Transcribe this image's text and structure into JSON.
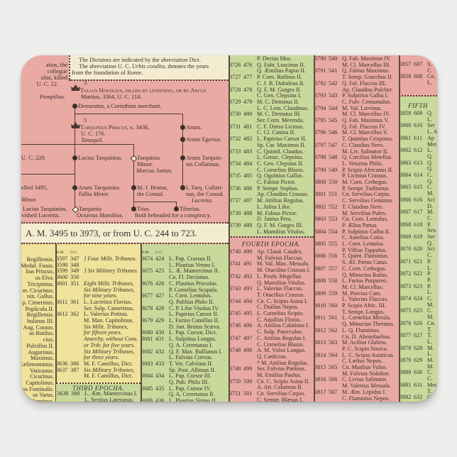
{
  "colors": {
    "pink": "#e9aaa3",
    "yellow": "#efe29a",
    "green": "#c9d99b",
    "cream": "#f3ecd1",
    "ink": "#3b2f2b"
  },
  "note": {
    "line1": "The Dictators are indicated by the abreviation Dict.",
    "line2a": "The abreviation U. C. ",
    "line2b": "Urbis condita",
    "line2c": ", denotes the years",
    "line3": "from the foundation of Rome."
  },
  "left_fragment": {
    "l1": "atius, the",
    "l2": "collegue",
    "l3": "ulus, killed",
    "l4": "U. C. 12.",
    "l5": "Pompilius."
  },
  "tree": {
    "tullus_num": "3",
    "tullus": "Tullus Hostilius, killed by lightning, or by Ancus",
    "tullus2": "Martius, 3364, U. C. 114.",
    "demaratus": "Demaratus, a Corinthian merchant.",
    "tarq_num": "5",
    "tarq": "Tarquinius Priscus, k. 3436,",
    "tarq2": "U. C. 176.",
    "tarq3": "Tanaquil.",
    "aruns": "Aruns.",
    "aruns_egerius": "Aruns Egerius.",
    "aruns_tarq_coll": "Aruns Tarquin-",
    "aruns_tarq_coll2": "ius Collatinus.",
    "uc220": "U. C. 220.",
    "lucius": "Lucius Tarquinius.",
    "tarquinia_minor": "Tarquinia",
    "tarquinia_minor2": "Minor.",
    "marcus_junius": "Marcus Junius.",
    "expelled": "elled 3495,",
    "minor": "Minor.",
    "aruns_tarq": "Aruns Tarquinius.",
    "tullia": "Tullia Minor.",
    "brutus": "M. J. Brutus,",
    "brutus2": "the Consul.",
    "collatinus": "L.Tarq. Collati-",
    "collatinus2": "nus, the Consul.",
    "lucretia": "Lucretia.",
    "lucius2": "Lucius Tarquinius,",
    "ravished": "vished Lucretia.",
    "tarquinia": "Tarquinia",
    "octavius": "Octavius Mamilius.",
    "titus": "Titus.",
    "tiberius": "Tiberius.",
    "beheaded": "Both beheaded for a conspiracy."
  },
  "band": "A. M. 3495 to 3973, or from U. C. 244 to 723.",
  "headers": {
    "am": "A.M.",
    "uc": "U.C."
  },
  "epochs": {
    "third": "THIRD EPOCHA.",
    "fourth": "FOURTH EPOCHA.",
    "fifth": "FIFTH"
  },
  "left_names": [
    "Regillensis.",
    "Medul. Fusus.",
    "lius Priscus.",
    "us Elva.",
    "Triciptinus.",
    "m. Cicurinus.",
    "nin. Gallus.",
    "p. Cimerinus.",
    "Poplicola II.",
    "Regillensis.",
    "bulanus III.",
    "Aug. Cossus.",
    "us Rutilus.",
    "cius.",
    "Pulvillus II.",
    "Augurinus.",
    "Maximus.",
    "Cælimontanus.",
    "Vaticanus.",
    "Cicurinus.",
    "Capitolinus.",
    "us Fontinalis.",
    "us Varus.",
    "Geminus."
  ],
  "tribunes_col": [
    [
      "3597",
      "347",
      "} Four Milit. Tribunes.",
      "i"
    ],
    [
      "3598",
      "348",
      ""
    ],
    [
      "3599",
      "349",
      "} Six Military Tribunes",
      "i"
    ],
    [
      "3600",
      "350",
      ""
    ],
    [
      "3601",
      "351",
      "Eight Milit. Tribunes,",
      "i"
    ],
    [
      "",
      "",
      "Six Military Tribunes,",
      "i"
    ],
    [
      "",
      "",
      "for nine years.",
      "i"
    ],
    [
      "3611",
      "361",
      "L. Lucretius Flavius."
    ],
    [
      "",
      "",
      "Ser. Sulp. Camerinus."
    ],
    [
      "3612",
      "362",
      "L. Valerius Potitus."
    ],
    [
      "",
      "",
      "M. Man. Capitolinus."
    ],
    [
      "",
      "",
      "Six Milit. Tribunes,",
      "i"
    ],
    [
      "",
      "",
      "for fifteen years.",
      "i"
    ],
    [
      "",
      "",
      "Anarchy, without Cons.",
      "i"
    ],
    [
      "",
      "",
      "or Trib. for five years.",
      "i"
    ],
    [
      "",
      "",
      "Six Military Tribunes,",
      "i"
    ],
    [
      "",
      "",
      "for three years.",
      "i"
    ],
    [
      "3636",
      "386",
      "M. F. Camillus, Dict."
    ],
    [
      "3637",
      "387",
      "Six Military Tribunes,",
      "i"
    ],
    [
      "",
      "",
      "M. F. Camillus, Dict."
    ]
  ],
  "third_epoch_col": [
    [
      "3638",
      "388",
      "L. Æm. Mamercinus I."
    ],
    [
      "",
      "",
      "L. Sextius Lateranus."
    ]
  ],
  "green_col": [
    [
      "3674",
      "424",
      "L. Pap. Crassus II."
    ],
    [
      "",
      "",
      "L. Plautius Venno I."
    ],
    [
      "3675",
      "425",
      "L. Æ. Mamercinus II."
    ],
    [
      "",
      "",
      "Cn. Fl. Decianus."
    ],
    [
      "3676",
      "426",
      "C. Plautius Proculus."
    ],
    [
      "",
      "",
      "P. Cornelius Scapula."
    ],
    [
      "3677",
      "427",
      "L. Corn. Lentulus."
    ],
    [
      "",
      "",
      "Q. Publius Philo II."
    ],
    [
      "3678",
      "428",
      "C. P. Libo Visolus IV."
    ],
    [
      "",
      "",
      "L. Papirius Cursor II."
    ],
    [
      "3679",
      "429",
      "L. Furius Camillus II."
    ],
    [
      "",
      "",
      "D. Jun. Brutus Scæva."
    ],
    [
      "3680",
      "430",
      "L. Pap. Cursor, Dict."
    ],
    [
      "3681",
      "431",
      "L. Sulpitius Longus."
    ],
    [
      "",
      "",
      "Q. A. Cerretanus I."
    ],
    [
      "3682",
      "432",
      "Q. F. Max. Rullianus I."
    ],
    [
      "",
      "",
      "L. Fulvius Corvus."
    ],
    [
      "3683",
      "433",
      "T. Vet. Calvinus II."
    ],
    [
      "",
      "",
      "Sp. Post. Albinus II."
    ],
    [
      "3684",
      "434",
      "L. Pap. Cursor III."
    ],
    [
      "",
      "",
      "Q. Pub. Philo III."
    ],
    [
      "3685",
      "435",
      "L. Pap. Cursor IV."
    ],
    [
      "",
      "",
      "Q. A. Cerretanus II."
    ],
    [
      "3686",
      "436",
      "L. Plautius Venno II."
    ]
  ],
  "mid_green_col": [
    [
      "",
      "",
      "P. Decius Mus."
    ],
    [
      "3726",
      "476",
      "Q. Fabr. Luscinus II."
    ],
    [
      "",
      "",
      "Q. Æmilius Papus II."
    ],
    [
      "3727",
      "477",
      "P. Corn. Rufinus II."
    ],
    [
      "",
      "",
      "C. J. B. Dubuleus II."
    ],
    [
      "3728",
      "478",
      "Q. F. M. Gurges II."
    ],
    [
      "",
      "",
      "C. Gen. Clepsina I."
    ],
    [
      "3729",
      "479",
      "M. C. Dentatus II."
    ],
    [
      "",
      "",
      "L. C. Lent. Claudinus."
    ],
    [
      "3730",
      "480",
      "M. C. Dentatus III."
    ],
    [
      "",
      "",
      "Ser. Corn. Merenda."
    ],
    [
      "3731",
      "481",
      "C. F. Dorso Licinus."
    ],
    [
      "",
      "",
      "C. Cl. Canina II."
    ],
    [
      "3732",
      "482",
      "L. Papirius Cursor II."
    ],
    [
      "",
      "",
      "Sp. Car. Maximus II."
    ],
    [
      "3733",
      "483",
      "C. Quintil. Claudus."
    ],
    [
      "",
      "",
      "L. Genuc. Clepsina."
    ],
    [
      "3734",
      "484",
      "C. Gen. Clepsina II."
    ],
    [
      "",
      "",
      "C. Cornelius Blasio."
    ],
    [
      "3735",
      "485",
      "Q. Ogulnius Gallus."
    ],
    [
      "",
      "",
      "C. Fabius Pictor."
    ],
    [
      "3736",
      "486",
      "P. Sempr. Sophus."
    ],
    [
      "",
      "",
      "Ap. Claudius Crassus."
    ],
    [
      "3737",
      "487",
      "M. Attilius Regulus."
    ],
    [
      "",
      "",
      "L. Julius Libo."
    ],
    [
      "3738",
      "488",
      "M. Fabius Pictor."
    ],
    [
      "",
      "",
      "D. Junius Pera."
    ],
    [
      "3739",
      "489",
      "Q. F. M. Gurges III."
    ],
    [
      "",
      "",
      "L. Mamilius Vitulus."
    ]
  ],
  "fourth_epoch_col": [
    [
      "3740",
      "490",
      "Ap. Claud. Caudex."
    ],
    [
      "",
      "",
      "M. Fulvius Flaccus."
    ],
    [
      "3741",
      "491",
      "M. Val. Max. Messala."
    ],
    [
      "",
      "",
      "M. Otacilius Crassus I."
    ],
    [
      "3742",
      "492",
      "L. Posth. Megellus."
    ],
    [
      "",
      "",
      "Q. Mamilius Vitulus."
    ],
    [
      "3743",
      "493",
      "L. Valerius Flaccus."
    ],
    [
      "",
      "",
      "T. Otacilius Crassus."
    ],
    [
      "3744",
      "494",
      "Cn. C. Scipio Asina I."
    ],
    [
      "",
      "",
      "C. Duilius Nepos."
    ],
    [
      "3745",
      "495",
      "L. Cornelius Scipio."
    ],
    [
      "",
      "",
      "C. Aquilius Florus."
    ],
    [
      "3746",
      "496",
      "A. Attilius Calatinus I."
    ],
    [
      "",
      "",
      "C. Sulp. Paterculus."
    ],
    [
      "3747",
      "497",
      "C. Attilius Regulus I."
    ],
    [
      "",
      "",
      "C. Cornelius Blasio."
    ],
    [
      "3748",
      "498",
      "A. M. Vulso Longus."
    ],
    [
      "",
      "",
      "Q. Cædicius."
    ],
    [
      "",
      "",
      "* M. Attilius Regulus."
    ],
    [
      "3749",
      "499",
      "Ser. Fulvius Pætinus."
    ],
    [
      "",
      "",
      "M. Emilius Paulus."
    ],
    [
      "3750",
      "500",
      "Cn. C. Scipio Asina II."
    ],
    [
      "",
      "",
      "A. Att. Calatinus II."
    ],
    [
      "3751",
      "501",
      "Cn. Servilius Cæpio."
    ],
    [
      "",
      "",
      "C. Sempr. Blæsus I."
    ]
  ],
  "pink_col": [
    [
      "3790",
      "540",
      "Q. Fab. Maximus IV."
    ],
    [
      "",
      "",
      "M. Cl. Marcellus III."
    ],
    [
      "3791",
      "541",
      "Q. Fabius Maximus."
    ],
    [
      "",
      "",
      "T. Semp. Gracchus II."
    ],
    [
      "3792",
      "542",
      "Q. Ful. Flaccus III."
    ],
    [
      "",
      "",
      "Ap. Claudius Pulcher."
    ],
    [
      "3793",
      "543",
      "P. Sulpitius Galba I."
    ],
    [
      "",
      "",
      "C. Fulv. Centumalus."
    ],
    [
      "3794",
      "544",
      "M. Val. Lævinus."
    ],
    [
      "",
      "",
      "M. Cl. Marcellus IV."
    ],
    [
      "3795",
      "545",
      "Q. Fab. Maximus V."
    ],
    [
      "",
      "",
      "Q. Ful. Flaccus IV."
    ],
    [
      "3796",
      "546",
      "M. Cl. Marcellus V."
    ],
    [
      "",
      "",
      "T. Quintius Crispinus."
    ],
    [
      "3797",
      "547",
      "C. Claudius Nero."
    ],
    [
      "",
      "",
      "M. Liv. Salinator II."
    ],
    [
      "3798",
      "548",
      "Q. Cæcilius Metellus."
    ],
    [
      "",
      "",
      "L. Veturius Philo."
    ],
    [
      "3799",
      "549",
      "P. Scipio Africanus II."
    ],
    [
      "",
      "",
      "P. Licinius Crassus."
    ],
    [
      "3800",
      "550",
      "M. Corn. Cethegus."
    ],
    [
      "",
      "",
      "P. Sempr. Tuditanus."
    ],
    [
      "3801",
      "551",
      "Cn. Servilius Cæpio."
    ],
    [
      "",
      "",
      "C. Servilius Geminus."
    ],
    [
      "3802",
      "552",
      "T. Claudius Nero."
    ],
    [
      "",
      "",
      "M. Servilius Pulex."
    ],
    [
      "3803",
      "553",
      "Cn. Corn. Lentulus."
    ],
    [
      "",
      "",
      "P. Ælius Pætus."
    ],
    [
      "3804",
      "554",
      "P. Sulpitius Galba II."
    ],
    [
      "",
      "",
      "C. Aurelius Cotta."
    ],
    [
      "3805",
      "555",
      "L. Corn. Lentulus."
    ],
    [
      "",
      "",
      "P. Villius Tappulus."
    ],
    [
      "3806",
      "556",
      "T. Quint. Flaminius."
    ],
    [
      "",
      "",
      "S. Æl. Pætus Catus."
    ],
    [
      "3807",
      "557",
      "C. Corn. Cethegus."
    ],
    [
      "",
      "",
      "Q. Minucius Rufus."
    ],
    [
      "3808",
      "558",
      "L. Furius Purpureo."
    ],
    [
      "",
      "",
      "M. Cl. Marcellus."
    ],
    [
      "3809",
      "559",
      "M. Porcius Cato."
    ],
    [
      "",
      "",
      "L. Valerius Flaccus."
    ],
    [
      "3810",
      "560",
      "P. Scipio Afric. III."
    ],
    [
      "",
      "",
      "T. Sempr. Longus."
    ],
    [
      "3811",
      "561",
      "L. Cornelius Merula."
    ],
    [
      "",
      "",
      "Q. Minucius Thermus."
    ],
    [
      "3812",
      "562",
      "L. Q. Flaminius."
    ],
    [
      "",
      "",
      "Cn. D. Ahenobarbus."
    ],
    [
      "3813",
      "563",
      "M. Acilius Glabrio."
    ],
    [
      "",
      "",
      "P. C. Scipio Nasica."
    ],
    [
      "3814",
      "564",
      "L. C. Scipio Asiaticus."
    ],
    [
      "",
      "",
      "C. Lælius Nepos."
    ],
    [
      "3815",
      "565",
      "Cn. Manlius Vulso."
    ],
    [
      "",
      "",
      "M. Fulvius Nobilior."
    ],
    [
      "3816",
      "566",
      "C. Livius Salinator."
    ],
    [
      "",
      "",
      "M. Valerius Messala."
    ],
    [
      "3817",
      "567",
      "M. Æm. Lepidus I."
    ],
    [
      "",
      "",
      "C. Flaminius Nepos."
    ],
    [
      "3818",
      "568",
      "Sp. Post. Albinus."
    ]
  ],
  "right_top_col": [
    [
      "3857",
      "607",
      "S."
    ],
    [
      "",
      "",
      "C."
    ],
    [
      "3858",
      "608",
      "Cn."
    ],
    [
      "",
      "",
      "L."
    ]
  ],
  "fifth_epoch_col": [
    [
      "3859",
      "609",
      "Q."
    ],
    [
      "",
      "",
      "L."
    ],
    [
      "3860",
      "610",
      "Ser"
    ],
    [
      "",
      "",
      "L. A"
    ],
    [
      "3861",
      "611",
      "Ap"
    ],
    [
      "",
      "",
      "Met"
    ],
    [
      "3862",
      "612",
      "L."
    ],
    [
      "",
      "",
      "Q."
    ],
    [
      "3863",
      "613",
      "Q."
    ],
    [
      "",
      "",
      "Q."
    ],
    [
      "3864",
      "614",
      "C."
    ],
    [
      "",
      "",
      "Q."
    ],
    [
      "3865",
      "615",
      "C."
    ],
    [
      "",
      "",
      "M."
    ],
    [
      "3866",
      "616",
      "Sci"
    ],
    [
      "",
      "",
      "D."
    ],
    [
      "3867",
      "617",
      "M."
    ],
    [
      "",
      "",
      "C."
    ],
    [
      "3868",
      "618",
      "P."
    ],
    [
      "",
      "",
      "Sex"
    ],
    [
      "3869",
      "619",
      "Ser"
    ],
    [
      "",
      "",
      "Q."
    ],
    [
      "3870",
      "620",
      "Sci"
    ],
    [
      "",
      "",
      "C."
    ],
    [
      "3871",
      "621",
      "P."
    ],
    [
      "",
      "",
      "L."
    ],
    [
      "3872",
      "622",
      "P."
    ],
    [
      "",
      "",
      "P."
    ],
    [
      "3873",
      "623",
      "P."
    ],
    [
      "",
      "",
      "L."
    ],
    [
      "3874",
      "624",
      "C."
    ],
    [
      "",
      "",
      "M."
    ],
    [
      "3875",
      "625",
      "C."
    ],
    [
      "",
      "",
      "M."
    ],
    [
      "3876",
      "626",
      "Cn."
    ],
    [
      "",
      "",
      "T."
    ],
    [
      "3877",
      "627",
      "T."
    ],
    [
      "",
      "",
      "L."
    ],
    [
      "3878",
      "628",
      "M."
    ],
    [
      "",
      "",
      "L."
    ],
    [
      "3879",
      "629",
      "M."
    ],
    [
      "",
      "",
      "M."
    ],
    [
      "3880",
      "630",
      "C."
    ],
    [
      "",
      "",
      "C."
    ],
    [
      "3881",
      "631",
      "Met"
    ],
    [
      "",
      "",
      "T."
    ],
    [
      "3882",
      "632",
      "C."
    ]
  ]
}
